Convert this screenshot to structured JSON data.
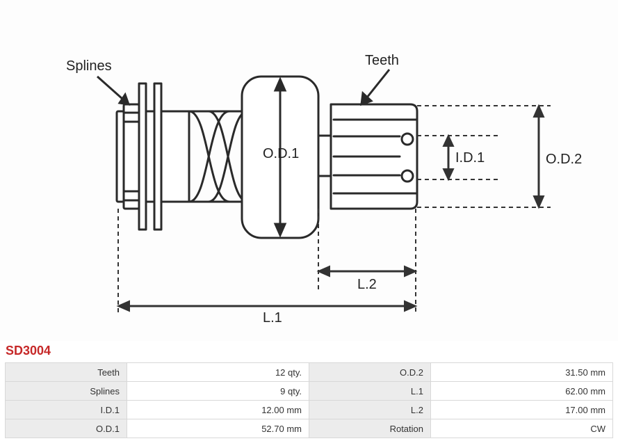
{
  "partNumber": "SD3004",
  "diagram": {
    "labels": {
      "splines": "Splines",
      "teeth": "Teeth",
      "od1": "O.D.1",
      "od2": "O.D.2",
      "id1": "I.D.1",
      "l1": "L.1",
      "l2": "L.2"
    },
    "colors": {
      "stroke": "#2a2a2a",
      "background": "#ffffff",
      "dimensionDash": "#333333"
    },
    "strokeWidth": 3
  },
  "specs": {
    "rows": [
      {
        "label1": "Teeth",
        "value1": "12 qty.",
        "label2": "O.D.2",
        "value2": "31.50 mm"
      },
      {
        "label1": "Splines",
        "value1": "9 qty.",
        "label2": "L.1",
        "value2": "62.00 mm"
      },
      {
        "label1": "I.D.1",
        "value1": "12.00 mm",
        "label2": "L.2",
        "value2": "17.00 mm"
      },
      {
        "label1": "O.D.1",
        "value1": "52.70 mm",
        "label2": "Rotation",
        "value2": "CW"
      }
    ]
  }
}
